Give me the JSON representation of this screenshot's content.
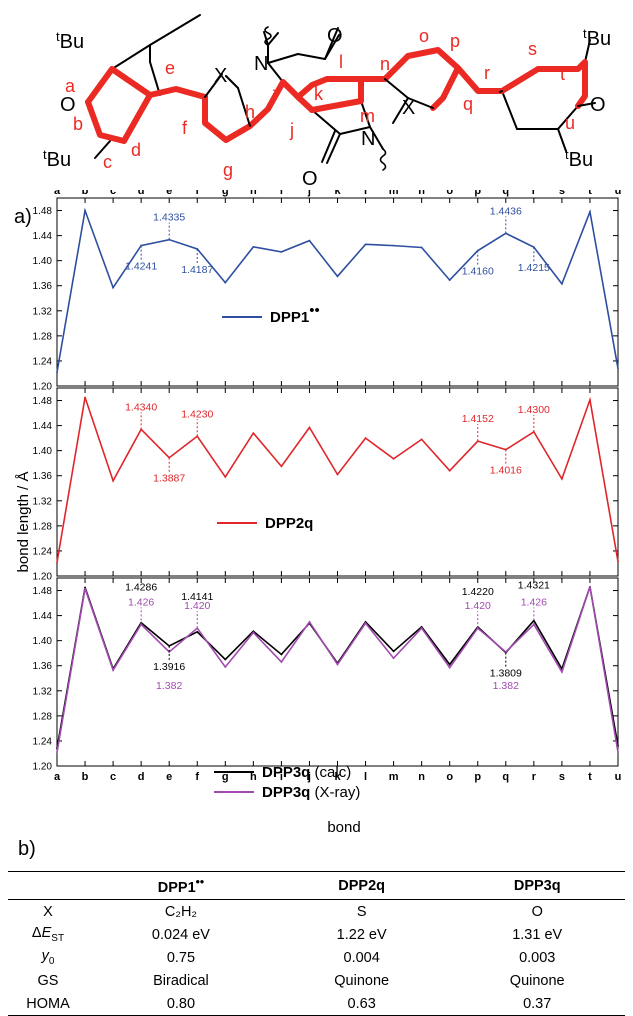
{
  "scheme": {
    "substituent": "Bu",
    "substituent_prefix": "t",
    "oxygen": "O",
    "nitrogen": "N",
    "heteroatom": "X",
    "bond_letters": [
      "a",
      "b",
      "c",
      "d",
      "e",
      "f",
      "g",
      "h",
      "i",
      "j",
      "k",
      "l",
      "m",
      "n",
      "o",
      "p",
      "q",
      "r",
      "s",
      "t",
      "u"
    ]
  },
  "panel_labels": {
    "a": "a)",
    "b": "b)"
  },
  "chart_data": {
    "type": "line",
    "categories": [
      "a",
      "b",
      "c",
      "d",
      "e",
      "f",
      "g",
      "h",
      "i",
      "j",
      "k",
      "l",
      "m",
      "n",
      "o",
      "p",
      "q",
      "r",
      "s",
      "t",
      "u"
    ],
    "xlabel": "bond",
    "ylabel": "bond length / Å",
    "ylim": [
      1.2,
      1.5
    ],
    "yticks": [
      "1.20",
      "1.24",
      "1.28",
      "1.32",
      "1.36",
      "1.40",
      "1.44",
      "1.48"
    ],
    "grid": false,
    "panels": [
      {
        "series": [
          {
            "name": "DPP1",
            "name_suffix": "••",
            "color": "#2e4fa0",
            "values": [
              1.222,
              1.48,
              1.357,
              1.4241,
              1.4335,
              1.4187,
              1.365,
              1.422,
              1.414,
              1.432,
              1.375,
              1.426,
              1.424,
              1.421,
              1.369,
              1.416,
              1.4436,
              1.4215,
              1.363,
              1.478,
              1.228
            ]
          }
        ],
        "annotations": [
          {
            "x": "d",
            "y": 1.4241,
            "text": "1.4241",
            "position": "below",
            "color": "#2e4fa0"
          },
          {
            "x": "e",
            "y": 1.4335,
            "text": "1.4335",
            "position": "above",
            "color": "#2e4fa0"
          },
          {
            "x": "f",
            "y": 1.4187,
            "text": "1.4187",
            "position": "below",
            "color": "#2e4fa0"
          },
          {
            "x": "p",
            "y": 1.416,
            "text": "1.4160",
            "position": "below",
            "color": "#2e4fa0"
          },
          {
            "x": "q",
            "y": 1.4436,
            "text": "1.4436",
            "position": "above",
            "color": "#2e4fa0"
          },
          {
            "x": "r",
            "y": 1.4215,
            "text": "1.4215",
            "position": "below",
            "color": "#2e4fa0"
          }
        ]
      },
      {
        "series": [
          {
            "name": "DPP2q",
            "name_suffix": "",
            "color": "#e0262a",
            "values": [
              1.222,
              1.485,
              1.352,
              1.434,
              1.3887,
              1.423,
              1.358,
              1.428,
              1.375,
              1.437,
              1.362,
              1.42,
              1.387,
              1.418,
              1.368,
              1.4152,
              1.4016,
              1.43,
              1.355,
              1.481,
              1.223
            ]
          }
        ],
        "annotations": [
          {
            "x": "d",
            "y": 1.434,
            "text": "1.4340",
            "position": "above",
            "color": "#e0262a"
          },
          {
            "x": "e",
            "y": 1.3887,
            "text": "1.3887",
            "position": "below",
            "color": "#e0262a"
          },
          {
            "x": "f",
            "y": 1.423,
            "text": "1.4230",
            "position": "above",
            "color": "#e0262a"
          },
          {
            "x": "p",
            "y": 1.4152,
            "text": "1.4152",
            "position": "above",
            "color": "#e0262a"
          },
          {
            "x": "q",
            "y": 1.4016,
            "text": "1.4016",
            "position": "below",
            "color": "#e0262a"
          },
          {
            "x": "r",
            "y": 1.43,
            "text": "1.4300",
            "position": "above",
            "color": "#e0262a"
          }
        ]
      },
      {
        "series": [
          {
            "name": "DPP3q",
            "name_suffix": " (calc)",
            "color": "#000000",
            "values": [
              1.228,
              1.485,
              1.355,
              1.4286,
              1.3916,
              1.4141,
              1.37,
              1.415,
              1.378,
              1.428,
              1.364,
              1.43,
              1.383,
              1.422,
              1.362,
              1.422,
              1.3809,
              1.4321,
              1.355,
              1.486,
              1.232
            ]
          },
          {
            "name": "DPP3q",
            "name_suffix": " (X-ray)",
            "color": "#a24ab0",
            "values": [
              1.222,
              1.483,
              1.353,
              1.426,
              1.382,
              1.42,
              1.358,
              1.413,
              1.366,
              1.43,
              1.362,
              1.428,
              1.372,
              1.42,
              1.357,
              1.42,
              1.382,
              1.426,
              1.35,
              1.486,
              1.222
            ]
          }
        ],
        "annotations": [
          {
            "x": "d",
            "y": 1.4286,
            "text": "1.4286",
            "position": "above2",
            "color": "#000000"
          },
          {
            "x": "d",
            "y": 1.426,
            "text": "1.426",
            "position": "above",
            "color": "#a24ab0"
          },
          {
            "x": "e",
            "y": 1.3916,
            "text": "1.3916",
            "position": "below",
            "color": "#000000"
          },
          {
            "x": "e",
            "y": 1.382,
            "text": "1.382",
            "position": "below2",
            "color": "#a24ab0"
          },
          {
            "x": "f",
            "y": 1.4141,
            "text": "1.4141",
            "position": "above2",
            "color": "#000000"
          },
          {
            "x": "f",
            "y": 1.42,
            "text": "1.420",
            "position": "above",
            "color": "#a24ab0"
          },
          {
            "x": "p",
            "y": 1.422,
            "text": "1.4220",
            "position": "above2",
            "color": "#000000"
          },
          {
            "x": "p",
            "y": 1.42,
            "text": "1.420",
            "position": "above",
            "color": "#a24ab0"
          },
          {
            "x": "q",
            "y": 1.3809,
            "text": "1.3809",
            "position": "below",
            "color": "#000000"
          },
          {
            "x": "q",
            "y": 1.382,
            "text": "1.382",
            "position": "below2",
            "color": "#a24ab0"
          },
          {
            "x": "r",
            "y": 1.4321,
            "text": "1.4321",
            "position": "above2",
            "color": "#000000"
          },
          {
            "x": "r",
            "y": 1.426,
            "text": "1.426",
            "position": "above",
            "color": "#a24ab0"
          }
        ]
      }
    ]
  },
  "table": {
    "headers": [
      "",
      "DPP1",
      "DPP2q",
      "DPP3q"
    ],
    "header_suffixes": [
      "",
      "••",
      "",
      ""
    ],
    "rows": [
      {
        "label": "X",
        "label_sub": "",
        "label_it": false,
        "values": [
          "C₂H₂",
          "S",
          "O"
        ]
      },
      {
        "label": "ΔE",
        "label_sub": "ST",
        "label_it": true,
        "values": [
          "0.024 eV",
          "1.22 eV",
          "1.31 eV"
        ]
      },
      {
        "label": "y",
        "label_sub": "0",
        "label_it": true,
        "values": [
          "0.75",
          "0.004",
          "0.003"
        ]
      },
      {
        "label": "GS",
        "label_sub": "",
        "label_it": false,
        "values": [
          "Biradical",
          "Quinone",
          "Quinone"
        ]
      },
      {
        "label": "HOMA",
        "label_sub": "",
        "label_it": false,
        "values": [
          "0.80",
          "0.63",
          "0.37"
        ]
      }
    ]
  }
}
